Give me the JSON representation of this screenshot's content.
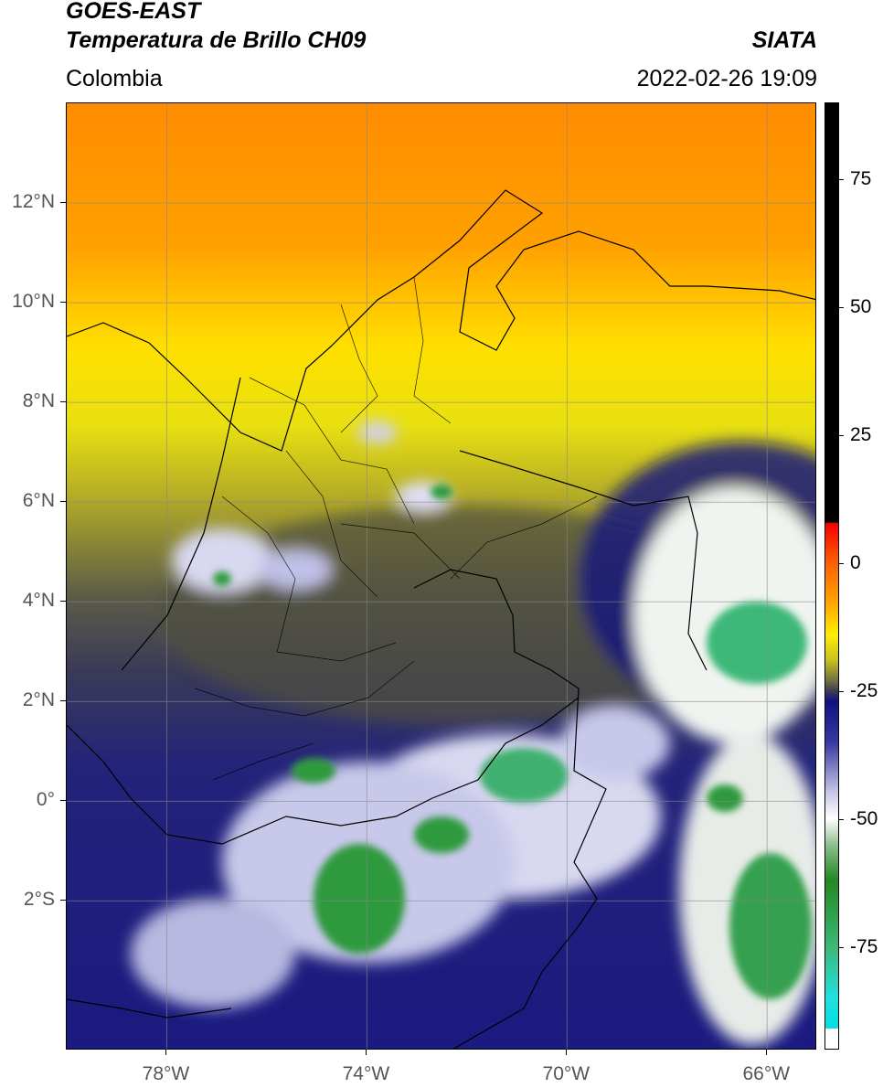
{
  "header": {
    "satellite": "GOES-EAST",
    "product": "Temperatura de Brillo CH09",
    "region": "Colombia",
    "organization": "SIATA",
    "datetime": "2022-02-26 19:09"
  },
  "map": {
    "lon_range": [
      -80,
      -65
    ],
    "lat_range": [
      -5,
      14
    ],
    "x_ticks": [
      {
        "lon": -78,
        "label": "78°W"
      },
      {
        "lon": -74,
        "label": "74°W"
      },
      {
        "lon": -70,
        "label": "70°W"
      },
      {
        "lon": -66,
        "label": "66°W"
      }
    ],
    "y_ticks": [
      {
        "lat": 12,
        "label": "12°N"
      },
      {
        "lat": 10,
        "label": "10°N"
      },
      {
        "lat": 8,
        "label": "8°N"
      },
      {
        "lat": 6,
        "label": "6°N"
      },
      {
        "lat": 4,
        "label": "4°N"
      },
      {
        "lat": 2,
        "label": "2°N"
      },
      {
        "lat": 0,
        "label": "0°"
      },
      {
        "lat": -2,
        "label": "2°S"
      }
    ],
    "gridlines": true
  },
  "colorbar": {
    "range": [
      -95,
      90
    ],
    "ticks": [
      {
        "value": 75,
        "label": "75"
      },
      {
        "value": 50,
        "label": "50"
      },
      {
        "value": 25,
        "label": "25"
      },
      {
        "value": 0,
        "label": "0"
      },
      {
        "value": -25,
        "label": "-25"
      },
      {
        "value": -50,
        "label": "-50"
      },
      {
        "value": -75,
        "label": "-75"
      }
    ],
    "stops": [
      {
        "value": 90,
        "color": "#000000"
      },
      {
        "value": 8,
        "color": "#000000"
      },
      {
        "value": 7.9,
        "color": "#f40000"
      },
      {
        "value": 0,
        "color": "#ff6000"
      },
      {
        "value": -8,
        "color": "#ffa800"
      },
      {
        "value": -14,
        "color": "#ffee00"
      },
      {
        "value": -19,
        "color": "#c8c020"
      },
      {
        "value": -23,
        "color": "#707040"
      },
      {
        "value": -25,
        "color": "#3c3c58"
      },
      {
        "value": -27,
        "color": "#101080"
      },
      {
        "value": -35,
        "color": "#3838a0"
      },
      {
        "value": -45,
        "color": "#c8c8e8"
      },
      {
        "value": -50,
        "color": "#ffffff"
      },
      {
        "value": -55,
        "color": "#90c090"
      },
      {
        "value": -62,
        "color": "#228822"
      },
      {
        "value": -75,
        "color": "#3cb878"
      },
      {
        "value": -85,
        "color": "#20e0e0"
      },
      {
        "value": -91,
        "color": "#00e0e0"
      },
      {
        "value": -91.1,
        "color": "#ffffff"
      },
      {
        "value": -95,
        "color": "#ffffff"
      }
    ]
  }
}
